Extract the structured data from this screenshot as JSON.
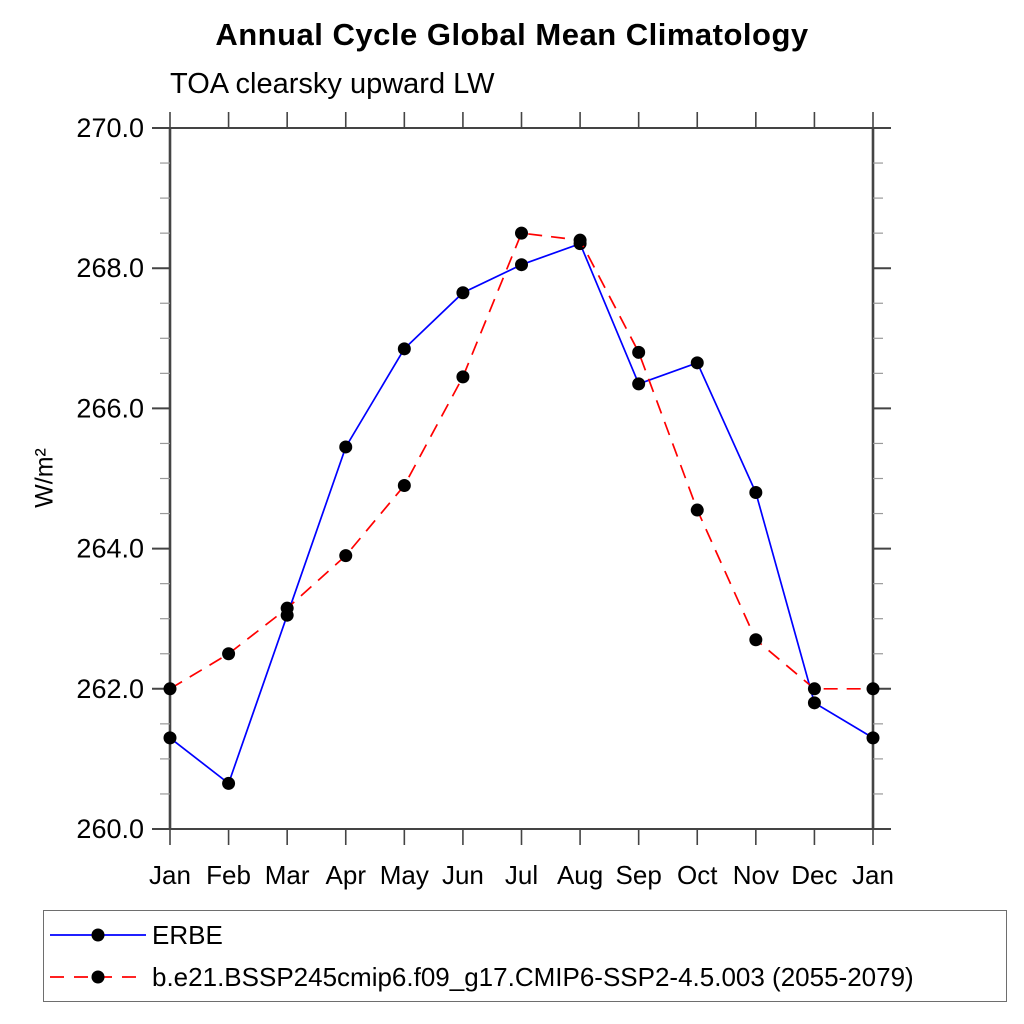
{
  "page": {
    "background": "#ffffff"
  },
  "chart_data": {
    "type": "line",
    "title": "Annual Cycle Global Mean Climatology",
    "subtitle": "TOA clearsky upward LW",
    "ylabel": "W/m²",
    "xlabel": "",
    "categories": [
      "Jan",
      "Feb",
      "Mar",
      "Apr",
      "May",
      "Jun",
      "Jul",
      "Aug",
      "Sep",
      "Oct",
      "Nov",
      "Dec",
      "Jan"
    ],
    "ylim": [
      260.0,
      270.0
    ],
    "ytick_major": 2.0,
    "ytick_minor": 0.5,
    "grid": false,
    "legend_position": "bottom-left-box",
    "axis_color": "#444444",
    "minor_tick_color": "#999999",
    "marker_color": "#000000",
    "series": [
      {
        "name": "ERBE",
        "color": "#0000ff",
        "line_style": "solid",
        "marker": "filled-circle",
        "values": [
          261.3,
          260.65,
          263.05,
          265.45,
          266.85,
          267.65,
          268.05,
          268.35,
          266.35,
          266.65,
          264.8,
          261.8,
          261.3
        ]
      },
      {
        "name": "b.e21.BSSP245cmip6.f09_g17.CMIP6-SSP2-4.5.003 (2055-2079)",
        "color": "#ff0000",
        "line_style": "dashed",
        "marker": "filled-circle",
        "values": [
          262.0,
          262.5,
          263.15,
          263.9,
          264.9,
          266.45,
          268.5,
          268.4,
          266.8,
          264.55,
          262.7,
          262.0,
          262.0
        ]
      }
    ]
  }
}
